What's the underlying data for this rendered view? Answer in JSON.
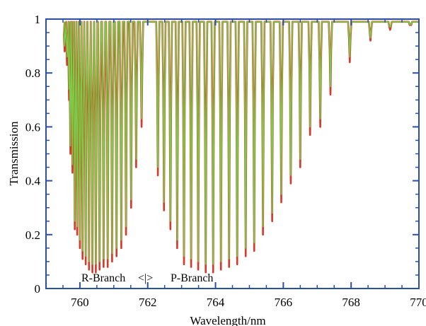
{
  "chart_data": {
    "type": "line",
    "xlabel": "Wavelength/nm",
    "ylabel": "Transmission",
    "xlim": [
      759,
      770
    ],
    "ylim": [
      0,
      1
    ],
    "x_ticks": [
      760,
      762,
      764,
      766,
      768,
      770
    ],
    "y_ticks": [
      0,
      0.2,
      0.4,
      0.6,
      0.8,
      1
    ],
    "y_tick_labels": [
      "0",
      "0.2",
      "0.4",
      "0.6",
      "0.8",
      "1"
    ],
    "grid": false,
    "annotations": {
      "r_branch": "R-Branch",
      "separator": "<|>",
      "p_branch": "P-Branch"
    },
    "series": [
      {
        "color": "#d43a2a",
        "line_wavelengths": [
          759.55,
          759.62,
          759.68,
          759.72,
          759.78,
          759.85,
          759.92,
          760.0,
          760.08,
          760.17,
          760.27,
          760.37,
          760.47,
          760.58,
          760.7,
          760.82,
          760.95,
          761.08,
          761.22,
          761.36,
          761.51,
          761.66,
          761.82,
          762.3,
          762.48,
          762.67,
          762.87,
          763.07,
          763.28,
          763.49,
          763.71,
          763.93,
          764.16,
          764.4,
          764.64,
          764.89,
          765.14,
          765.4,
          765.67,
          765.94,
          766.22,
          766.5,
          766.79,
          767.09,
          767.39,
          767.96,
          768.57,
          769.15,
          769.75
        ],
        "min_transmission": [
          0.88,
          0.83,
          0.7,
          0.5,
          0.43,
          0.22,
          0.2,
          0.15,
          0.11,
          0.09,
          0.07,
          0.06,
          0.06,
          0.07,
          0.08,
          0.08,
          0.1,
          0.12,
          0.15,
          0.2,
          0.3,
          0.45,
          0.6,
          0.42,
          0.29,
          0.22,
          0.15,
          0.09,
          0.08,
          0.07,
          0.06,
          0.06,
          0.07,
          0.08,
          0.09,
          0.12,
          0.14,
          0.2,
          0.25,
          0.32,
          0.39,
          0.45,
          0.57,
          0.6,
          0.72,
          0.84,
          0.92,
          0.96,
          0.98
        ]
      },
      {
        "color": "#7acc45",
        "line_wavelengths": [
          759.55,
          759.62,
          759.68,
          759.72,
          759.78,
          759.85,
          759.92,
          760.0,
          760.08,
          760.17,
          760.27,
          760.37,
          760.47,
          760.58,
          760.7,
          760.82,
          760.95,
          761.08,
          761.22,
          761.36,
          761.51,
          761.66,
          761.82,
          762.3,
          762.48,
          762.67,
          762.87,
          763.07,
          763.28,
          763.49,
          763.71,
          763.93,
          764.16,
          764.4,
          764.64,
          764.89,
          765.14,
          765.4,
          765.67,
          765.94,
          766.22,
          766.5,
          766.79,
          767.09,
          767.39,
          767.96,
          768.57,
          769.15,
          769.75
        ],
        "min_transmission": [
          0.9,
          0.86,
          0.74,
          0.53,
          0.46,
          0.25,
          0.23,
          0.18,
          0.14,
          0.12,
          0.1,
          0.09,
          0.09,
          0.1,
          0.11,
          0.11,
          0.13,
          0.15,
          0.18,
          0.23,
          0.33,
          0.48,
          0.63,
          0.45,
          0.32,
          0.25,
          0.18,
          0.12,
          0.11,
          0.1,
          0.09,
          0.09,
          0.1,
          0.11,
          0.12,
          0.15,
          0.17,
          0.23,
          0.28,
          0.35,
          0.42,
          0.48,
          0.6,
          0.63,
          0.75,
          0.86,
          0.93,
          0.97,
          0.985
        ]
      }
    ]
  }
}
